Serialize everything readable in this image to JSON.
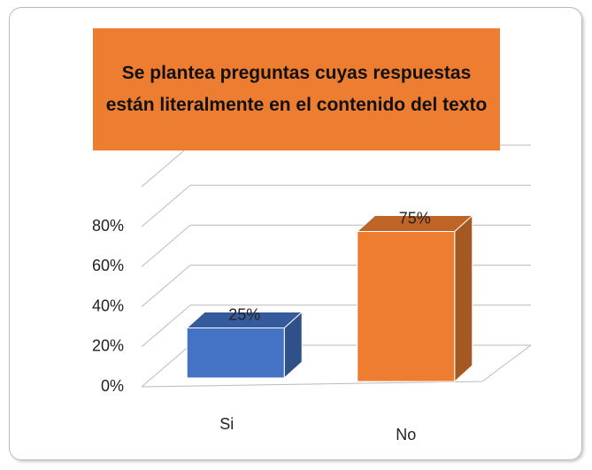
{
  "chart_data": {
    "type": "bar3d",
    "title": "Se plantea preguntas cuyas respuestas están literalmente en el contenido del texto",
    "categories": [
      "Si",
      "No"
    ],
    "values": [
      25,
      75
    ],
    "value_labels": [
      "25%",
      "75%"
    ],
    "colors": [
      "#4472c4",
      "#ed7d31"
    ],
    "ylim": [
      0,
      100
    ],
    "yticks": [
      {
        "value": 0,
        "label": "0%"
      },
      {
        "value": 20,
        "label": "20%"
      },
      {
        "value": 40,
        "label": "40%"
      },
      {
        "value": 60,
        "label": "60%"
      },
      {
        "value": 80,
        "label": "80%"
      }
    ],
    "grid": true
  }
}
